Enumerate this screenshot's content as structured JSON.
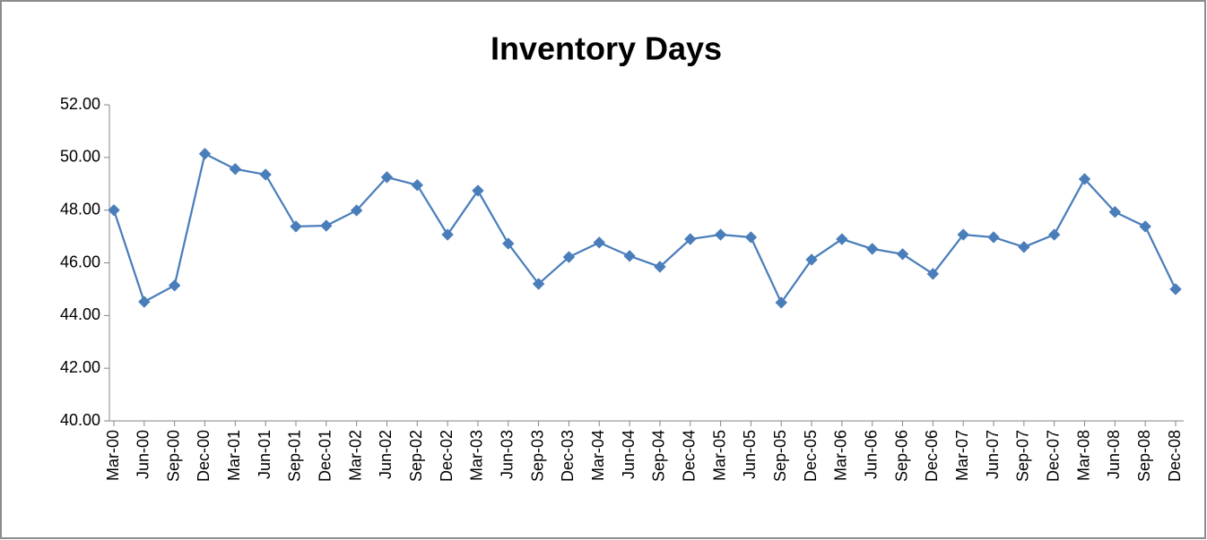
{
  "chart_data": {
    "type": "line",
    "title": "Inventory Days",
    "categories": [
      "Mar-00",
      "Jun-00",
      "Sep-00",
      "Dec-00",
      "Mar-01",
      "Jun-01",
      "Sep-01",
      "Dec-01",
      "Mar-02",
      "Jun-02",
      "Sep-02",
      "Dec-02",
      "Mar-03",
      "Jun-03",
      "Sep-03",
      "Dec-03",
      "Mar-04",
      "Jun-04",
      "Sep-04",
      "Dec-04",
      "Mar-05",
      "Jun-05",
      "Sep-05",
      "Dec-05",
      "Mar-06",
      "Jun-06",
      "Sep-06",
      "Dec-06",
      "Mar-07",
      "Jun-07",
      "Sep-07",
      "Dec-07",
      "Mar-08",
      "Jun-08",
      "Sep-08",
      "Dec-08"
    ],
    "values": [
      48.0,
      44.52,
      45.14,
      50.14,
      49.56,
      49.35,
      47.38,
      47.41,
      47.99,
      49.25,
      48.95,
      47.07,
      48.74,
      46.73,
      45.2,
      46.22,
      46.77,
      46.26,
      45.85,
      46.9,
      47.07,
      46.97,
      44.49,
      46.12,
      46.9,
      46.53,
      46.33,
      45.58,
      47.07,
      46.97,
      46.6,
      47.07,
      49.18,
      47.93,
      47.38,
      45.0
    ],
    "color": "#4a7ebb",
    "marker": "diamond",
    "ylim": [
      40,
      52
    ],
    "yticks": [
      {
        "value": 40,
        "label": "40.00"
      },
      {
        "value": 42,
        "label": "42.00"
      },
      {
        "value": 44,
        "label": "44.00"
      },
      {
        "value": 46,
        "label": "46.00"
      },
      {
        "value": 48,
        "label": "48.00"
      },
      {
        "value": 50,
        "label": "50.00"
      },
      {
        "value": 52,
        "label": "52.00"
      }
    ],
    "grid": false
  }
}
